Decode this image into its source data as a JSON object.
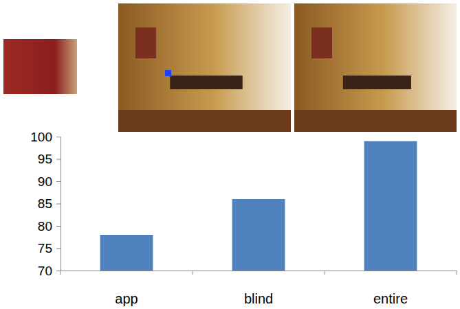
{
  "chart_data": {
    "type": "bar",
    "categories": [
      "app",
      "blind",
      "entire"
    ],
    "values": [
      78,
      86,
      99
    ],
    "color": "#4f81bd",
    "ylim": [
      70,
      100
    ],
    "yticks": [
      70,
      75,
      80,
      85,
      90,
      95,
      100
    ],
    "grid": false
  }
}
